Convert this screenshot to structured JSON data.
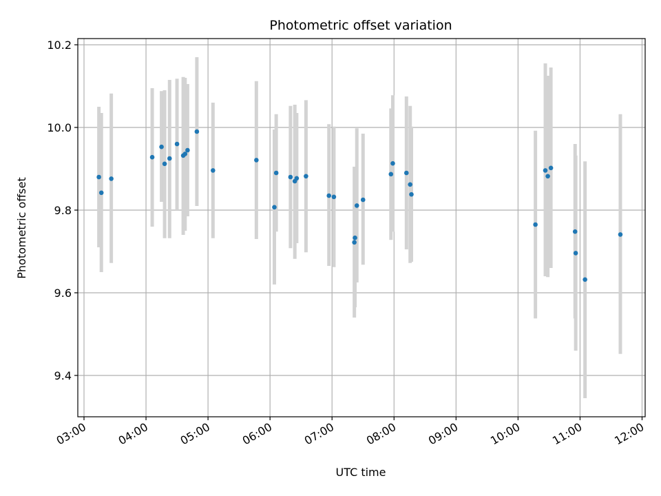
{
  "chart_data": {
    "type": "scatter",
    "title": "Photometric offset variation",
    "xlabel": "UTC time",
    "ylabel": "Photometric offset",
    "x_unit": "hours (UTC)",
    "xlim": [
      2.9,
      12.05
    ],
    "ylim": [
      9.3,
      10.215
    ],
    "x_ticks": [
      3,
      4,
      5,
      6,
      7,
      8,
      9,
      10,
      11,
      12
    ],
    "x_tick_labels": [
      "03:00",
      "04:00",
      "05:00",
      "06:00",
      "07:00",
      "08:00",
      "09:00",
      "10:00",
      "11:00",
      "12:00"
    ],
    "y_ticks": [
      9.4,
      9.6,
      9.8,
      10.0,
      10.2
    ],
    "y_tick_labels": [
      "9.4",
      "9.6",
      "9.8",
      "10.0",
      "10.2"
    ],
    "grid": true,
    "colors": {
      "point": "#1f77b4",
      "errorbar": "#d3d3d3",
      "grid": "#b0b0b0"
    },
    "points": [
      {
        "x": 3.24,
        "y": 9.88,
        "ylo": 9.71,
        "yhi": 10.05
      },
      {
        "x": 3.28,
        "y": 9.842,
        "ylo": 9.65,
        "yhi": 10.035
      },
      {
        "x": 3.44,
        "y": 9.876,
        "ylo": 9.672,
        "yhi": 10.082
      },
      {
        "x": 4.1,
        "y": 9.928,
        "ylo": 9.76,
        "yhi": 10.095
      },
      {
        "x": 4.25,
        "y": 9.953,
        "ylo": 9.82,
        "yhi": 10.088
      },
      {
        "x": 4.3,
        "y": 9.912,
        "ylo": 9.732,
        "yhi": 10.09
      },
      {
        "x": 4.38,
        "y": 9.925,
        "ylo": 9.732,
        "yhi": 10.115
      },
      {
        "x": 4.5,
        "y": 9.96,
        "ylo": 9.8,
        "yhi": 10.118
      },
      {
        "x": 4.6,
        "y": 9.932,
        "ylo": 9.74,
        "yhi": 10.122
      },
      {
        "x": 4.63,
        "y": 9.936,
        "ylo": 9.75,
        "yhi": 10.12
      },
      {
        "x": 4.67,
        "y": 9.945,
        "ylo": 9.785,
        "yhi": 10.105
      },
      {
        "x": 4.82,
        "y": 9.99,
        "ylo": 9.81,
        "yhi": 10.17
      },
      {
        "x": 5.08,
        "y": 9.896,
        "ylo": 9.732,
        "yhi": 10.06
      },
      {
        "x": 5.78,
        "y": 9.921,
        "ylo": 9.73,
        "yhi": 10.112
      },
      {
        "x": 6.07,
        "y": 9.807,
        "ylo": 9.62,
        "yhi": 9.995
      },
      {
        "x": 6.1,
        "y": 9.89,
        "ylo": 9.748,
        "yhi": 10.032
      },
      {
        "x": 6.33,
        "y": 9.88,
        "ylo": 9.708,
        "yhi": 10.052
      },
      {
        "x": 6.4,
        "y": 9.87,
        "ylo": 9.682,
        "yhi": 10.055
      },
      {
        "x": 6.43,
        "y": 9.877,
        "ylo": 9.72,
        "yhi": 10.035
      },
      {
        "x": 6.58,
        "y": 9.882,
        "ylo": 9.698,
        "yhi": 10.066
      },
      {
        "x": 6.95,
        "y": 9.835,
        "ylo": 9.665,
        "yhi": 10.008
      },
      {
        "x": 7.03,
        "y": 9.832,
        "ylo": 9.662,
        "yhi": 10.002
      },
      {
        "x": 7.36,
        "y": 9.722,
        "ylo": 9.54,
        "yhi": 9.905
      },
      {
        "x": 7.37,
        "y": 9.733,
        "ylo": 9.565,
        "yhi": 9.9
      },
      {
        "x": 7.4,
        "y": 9.811,
        "ylo": 9.625,
        "yhi": 9.998
      },
      {
        "x": 7.5,
        "y": 9.825,
        "ylo": 9.668,
        "yhi": 9.985
      },
      {
        "x": 7.95,
        "y": 9.887,
        "ylo": 9.728,
        "yhi": 10.046
      },
      {
        "x": 7.98,
        "y": 9.913,
        "ylo": 9.748,
        "yhi": 10.078
      },
      {
        "x": 8.2,
        "y": 9.89,
        "ylo": 9.705,
        "yhi": 10.075
      },
      {
        "x": 8.26,
        "y": 9.862,
        "ylo": 9.672,
        "yhi": 10.052
      },
      {
        "x": 8.28,
        "y": 9.838,
        "ylo": 9.675,
        "yhi": 10.002
      },
      {
        "x": 10.28,
        "y": 9.765,
        "ylo": 9.538,
        "yhi": 9.992
      },
      {
        "x": 10.44,
        "y": 9.896,
        "ylo": 9.64,
        "yhi": 10.155
      },
      {
        "x": 10.48,
        "y": 9.882,
        "ylo": 9.638,
        "yhi": 10.125
      },
      {
        "x": 10.53,
        "y": 9.902,
        "ylo": 9.66,
        "yhi": 10.145
      },
      {
        "x": 10.92,
        "y": 9.748,
        "ylo": 9.538,
        "yhi": 9.96
      },
      {
        "x": 10.93,
        "y": 9.696,
        "ylo": 9.46,
        "yhi": 9.932
      },
      {
        "x": 11.08,
        "y": 9.632,
        "ylo": 9.345,
        "yhi": 9.918
      },
      {
        "x": 11.65,
        "y": 9.741,
        "ylo": 9.452,
        "yhi": 10.032
      }
    ]
  }
}
